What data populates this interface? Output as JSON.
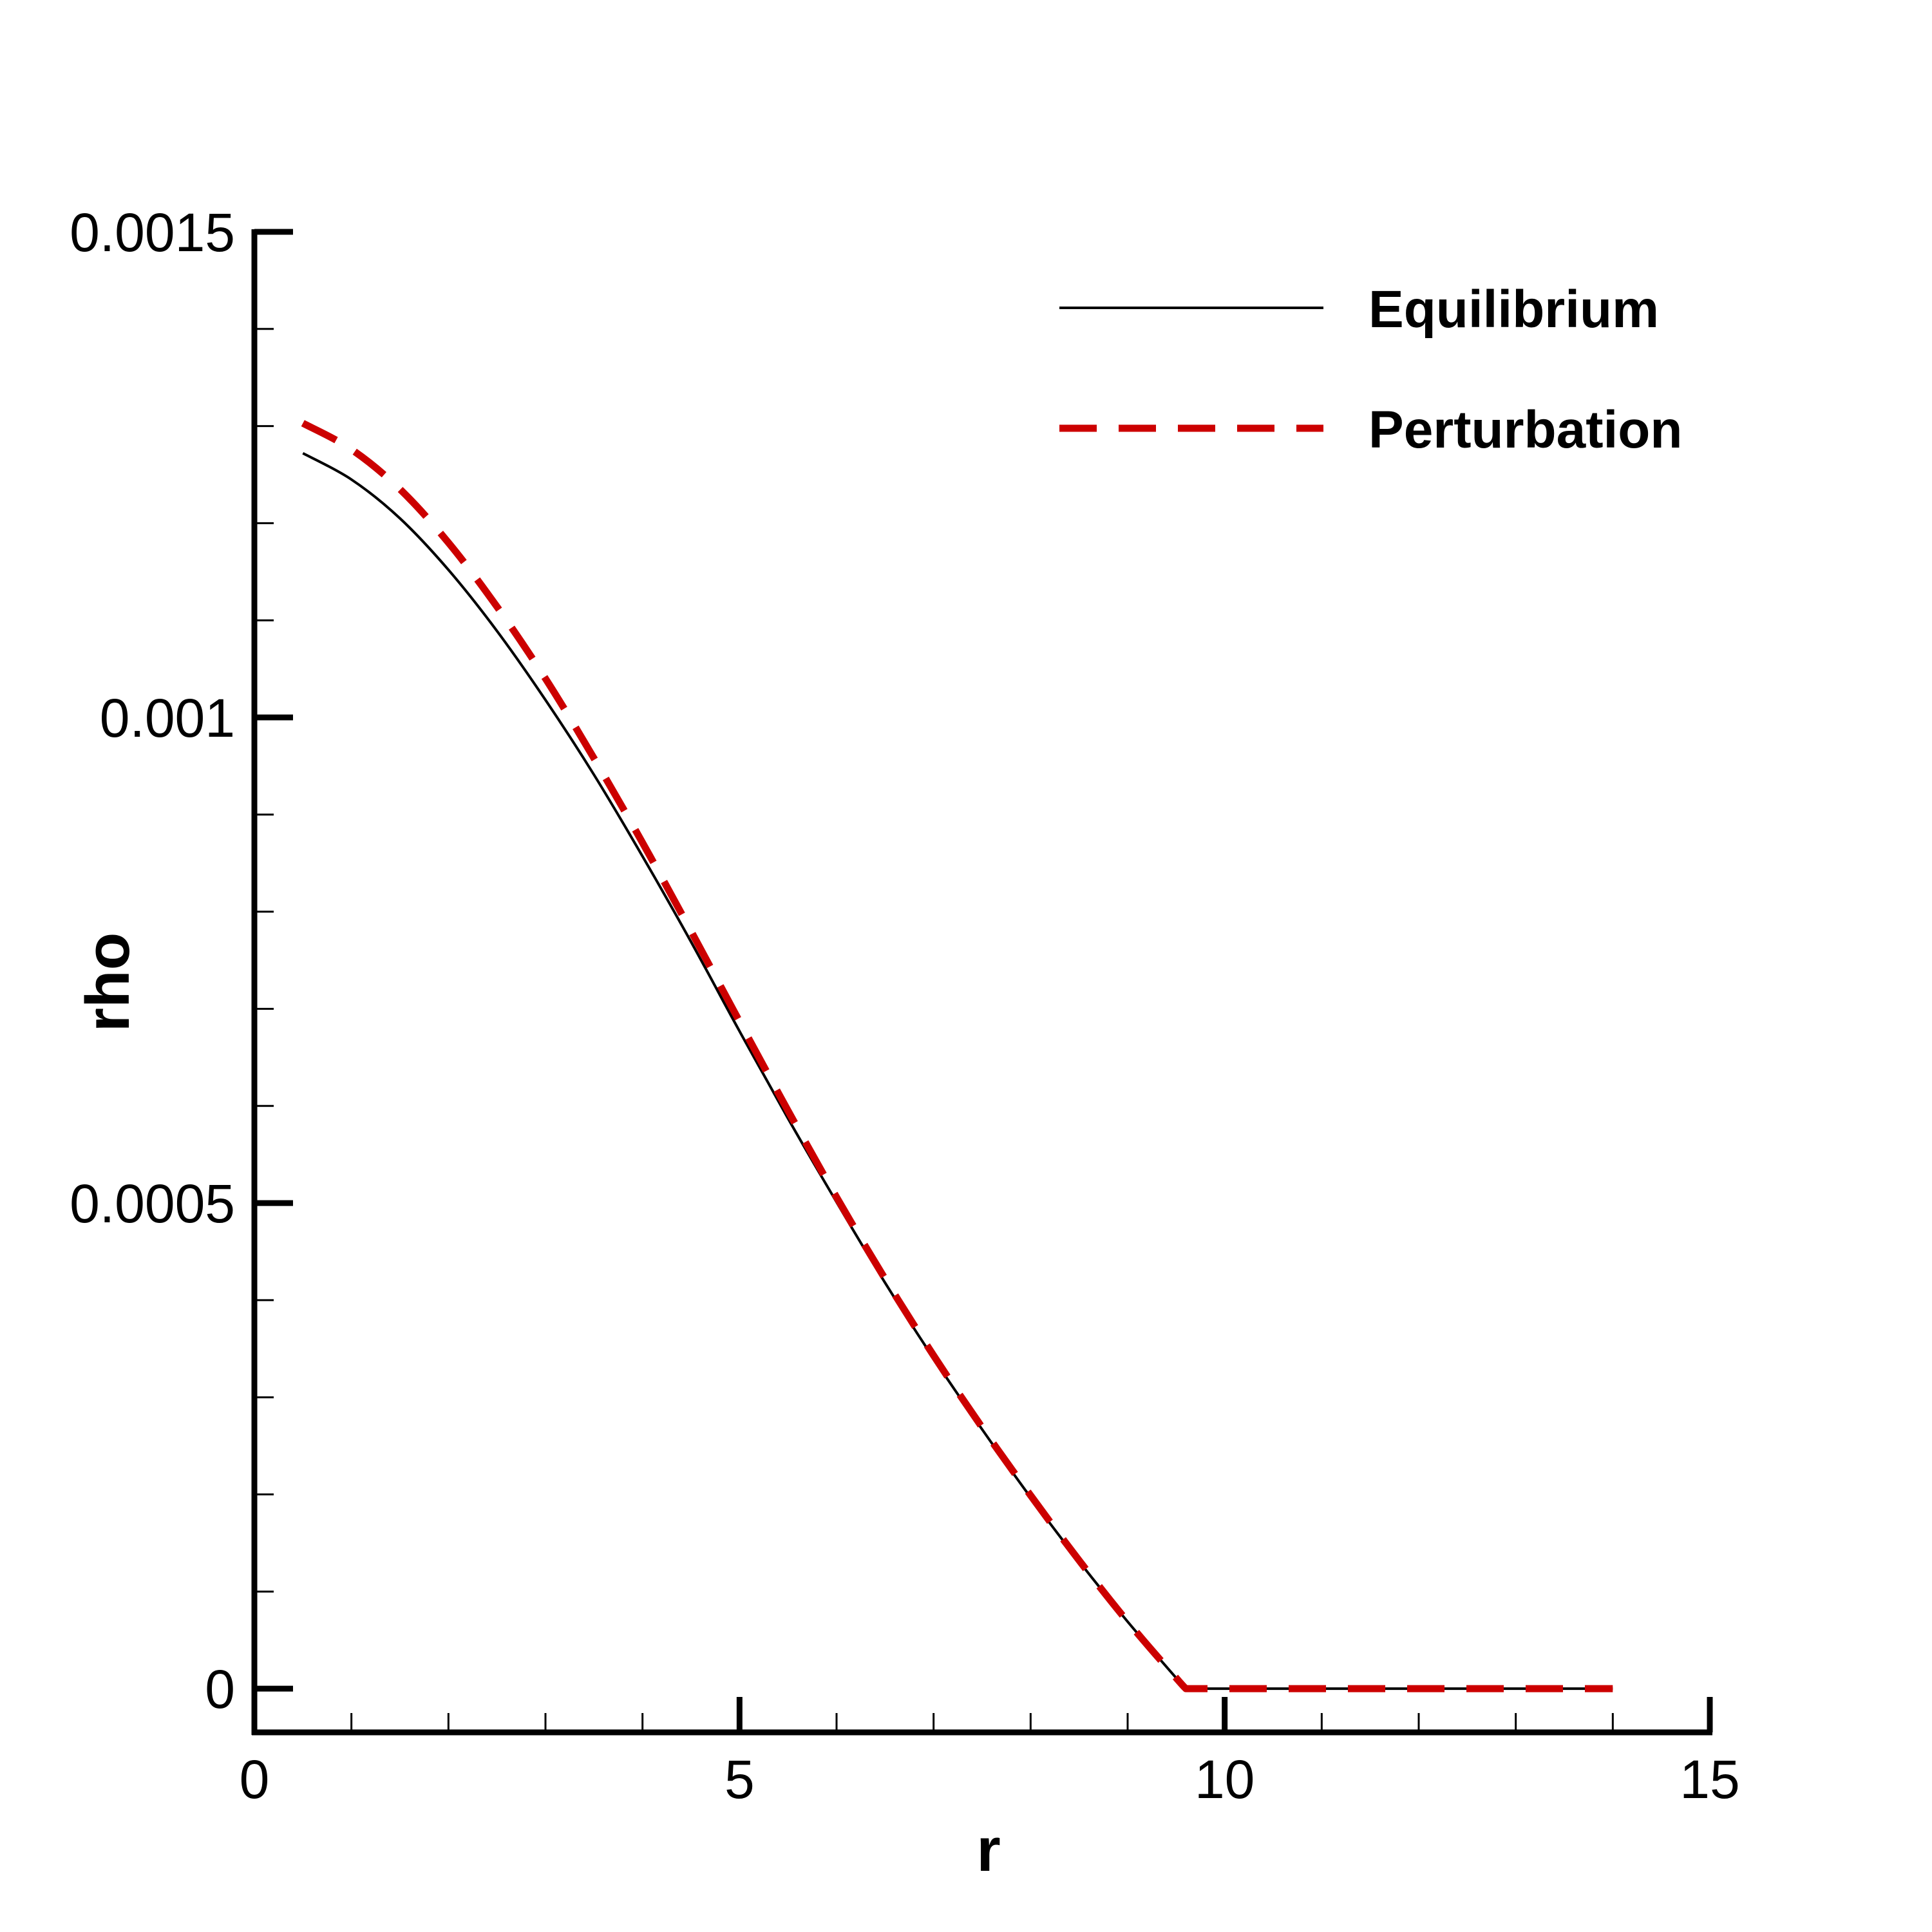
{
  "chart_data": {
    "type": "line",
    "xlabel": "r",
    "ylabel": "rho",
    "xlim": [
      0,
      15
    ],
    "ylim": [
      -4.5e-05,
      0.0015
    ],
    "x_ticks": [
      0,
      5,
      10,
      15
    ],
    "x_tick_labels": [
      "0",
      "5",
      "10",
      "15"
    ],
    "x_minor_step": 1,
    "y_ticks": [
      0,
      0.0005,
      0.001,
      0.0015
    ],
    "y_tick_labels": [
      "0",
      "0.0005",
      "0.001",
      "0.0015"
    ],
    "y_minor_step": 0.0001,
    "grid": false,
    "legend_position": "top-right",
    "series": [
      {
        "name": "Equilibrium",
        "color": "#000000",
        "style": "solid",
        "x": [
          0.5,
          1.0,
          1.5,
          2.0,
          2.5,
          3.0,
          3.5,
          4.0,
          4.5,
          5.0,
          5.5,
          6.0,
          6.5,
          7.0,
          7.5,
          8.0,
          8.5,
          9.0,
          9.5,
          9.6,
          10.0,
          11.0,
          12.0,
          13.0,
          14.0
        ],
        "y": [
          0.001272,
          0.001245,
          0.001205,
          0.001152,
          0.001089,
          0.001018,
          0.000941,
          0.000857,
          0.000769,
          0.000677,
          0.000587,
          0.000501,
          0.000418,
          0.00034,
          0.000267,
          0.000197,
          0.000131,
          6.9e-05,
          1.1e-05,
          0.0,
          0.0,
          0.0,
          0.0,
          0.0,
          0.0
        ]
      },
      {
        "name": "Perturbation",
        "color": "#cc0000",
        "style": "dashed",
        "x": [
          0.5,
          1.0,
          1.5,
          2.0,
          2.5,
          3.0,
          3.5,
          4.0,
          4.5,
          5.0,
          5.5,
          6.0,
          6.5,
          7.0,
          7.5,
          8.0,
          8.5,
          9.0,
          9.5,
          9.6,
          10.0,
          11.0,
          12.0,
          13.0,
          14.0
        ],
        "y": [
          0.001303,
          0.001276,
          0.001235,
          0.00118,
          0.001114,
          0.00104,
          0.000958,
          0.000871,
          0.00078,
          0.000687,
          0.000595,
          0.000506,
          0.000422,
          0.000343,
          0.000269,
          0.000199,
          0.000132,
          6.9e-05,
          1.1e-05,
          0.0,
          0.0,
          0.0,
          0.0,
          0.0,
          0.0
        ]
      }
    ]
  }
}
